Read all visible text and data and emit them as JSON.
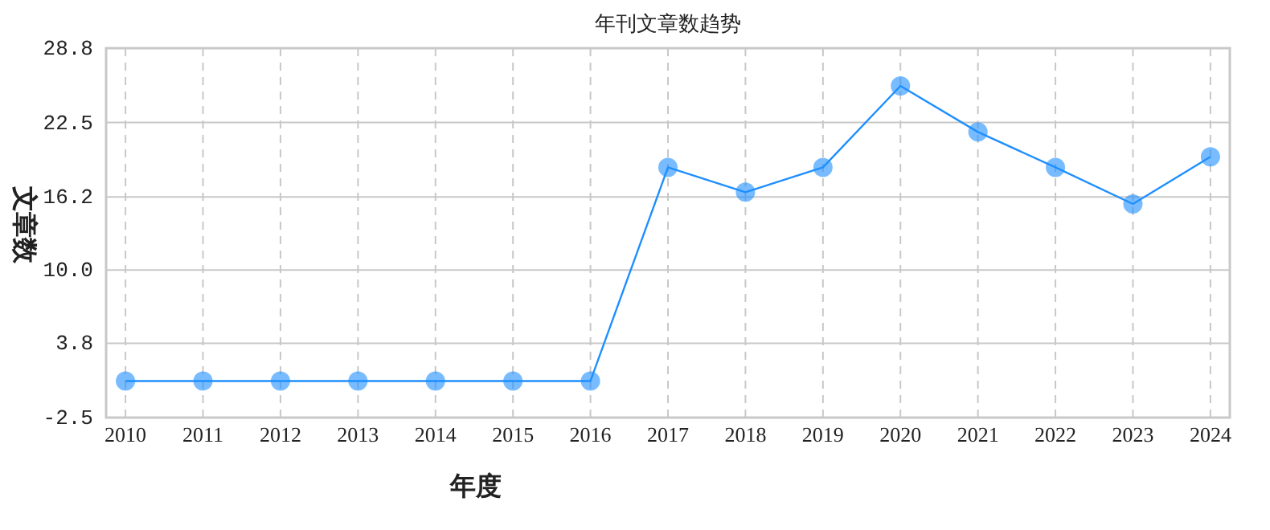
{
  "chart_data": {
    "type": "line",
    "title": "年刊文章数趋势",
    "xlabel": "年度",
    "ylabel": "文章数",
    "categories": [
      "2010",
      "2011",
      "2012",
      "2013",
      "2014",
      "2015",
      "2016",
      "2017",
      "2018",
      "2019",
      "2020",
      "2021",
      "2022",
      "2023",
      "2024"
    ],
    "series": [
      {
        "color": "#1e8fff",
        "values": [
          0.6,
          0.6,
          0.6,
          0.6,
          0.6,
          0.6,
          0.6,
          18.7,
          16.6,
          18.7,
          25.6,
          21.7,
          18.7,
          15.6,
          19.6
        ]
      }
    ],
    "ylim": [
      -2.5,
      28.8
    ],
    "yticks": [
      {
        "value": -2.5,
        "label": "-2.5"
      },
      {
        "value": 3.8,
        "label": "3.8"
      },
      {
        "value": 10.0,
        "label": "10.0"
      },
      {
        "value": 16.2,
        "label": "16.2"
      },
      {
        "value": 22.5,
        "label": "22.5"
      },
      {
        "value": 28.8,
        "label": "28.8"
      }
    ],
    "grid": true,
    "marker": "circle"
  }
}
